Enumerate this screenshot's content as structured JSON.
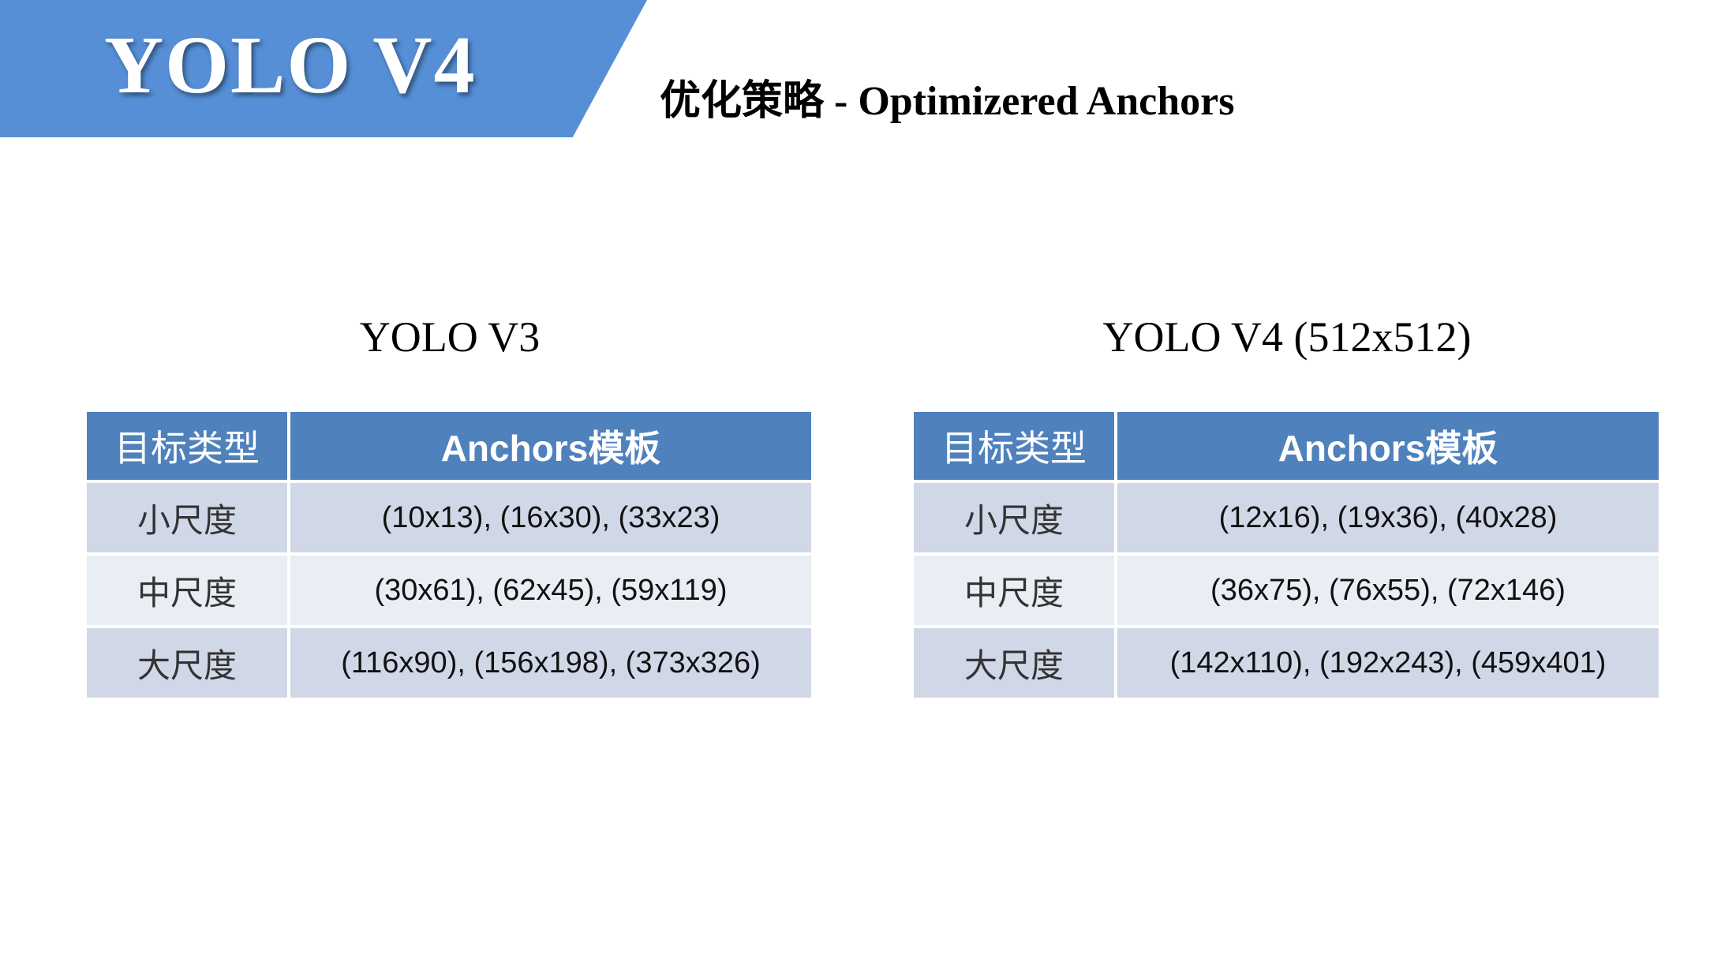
{
  "banner": {
    "title": "YOLO V4",
    "color": "#568fd6"
  },
  "subtitle": "优化策略 - Optimizered Anchors",
  "tables": [
    {
      "title": "YOLO V3",
      "headers": [
        "目标类型",
        "Anchors模板"
      ],
      "rows": [
        [
          "小尺度",
          "(10x13), (16x30), (33x23)"
        ],
        [
          "中尺度",
          "(30x61), (62x45), (59x119)"
        ],
        [
          "大尺度",
          "(116x90), (156x198), (373x326)"
        ]
      ]
    },
    {
      "title": "YOLO V4 (512x512)",
      "headers": [
        "目标类型",
        "Anchors模板"
      ],
      "rows": [
        [
          "小尺度",
          "(12x16), (19x36), (40x28)"
        ],
        [
          "中尺度",
          "(36x75), (76x55), (72x146)"
        ],
        [
          "大尺度",
          "(142x110), (192x243), (459x401)"
        ]
      ]
    }
  ],
  "colors": {
    "header": "#4f81bd",
    "row_odd": "#d0d8e8",
    "row_even": "#e9edf4"
  }
}
